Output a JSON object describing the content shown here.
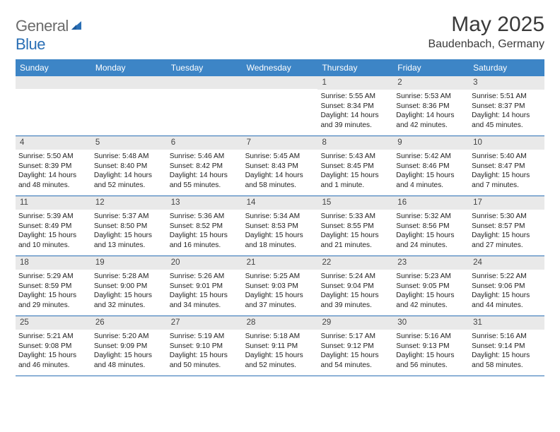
{
  "logo": {
    "part1": "General",
    "part2": "Blue"
  },
  "title": "May 2025",
  "location": "Baudenbach, Germany",
  "colors": {
    "header_bg": "#3d85c6",
    "rule": "#2a6fb5",
    "daynum_bg": "#e9e9e9",
    "logo_gray": "#6b6b6b",
    "logo_blue": "#2a6fb5"
  },
  "days_of_week": [
    "Sunday",
    "Monday",
    "Tuesday",
    "Wednesday",
    "Thursday",
    "Friday",
    "Saturday"
  ],
  "weeks": [
    [
      null,
      null,
      null,
      null,
      {
        "n": "1",
        "sunrise": "5:55 AM",
        "sunset": "8:34 PM",
        "daylight": "14 hours and 39 minutes."
      },
      {
        "n": "2",
        "sunrise": "5:53 AM",
        "sunset": "8:36 PM",
        "daylight": "14 hours and 42 minutes."
      },
      {
        "n": "3",
        "sunrise": "5:51 AM",
        "sunset": "8:37 PM",
        "daylight": "14 hours and 45 minutes."
      }
    ],
    [
      {
        "n": "4",
        "sunrise": "5:50 AM",
        "sunset": "8:39 PM",
        "daylight": "14 hours and 48 minutes."
      },
      {
        "n": "5",
        "sunrise": "5:48 AM",
        "sunset": "8:40 PM",
        "daylight": "14 hours and 52 minutes."
      },
      {
        "n": "6",
        "sunrise": "5:46 AM",
        "sunset": "8:42 PM",
        "daylight": "14 hours and 55 minutes."
      },
      {
        "n": "7",
        "sunrise": "5:45 AM",
        "sunset": "8:43 PM",
        "daylight": "14 hours and 58 minutes."
      },
      {
        "n": "8",
        "sunrise": "5:43 AM",
        "sunset": "8:45 PM",
        "daylight": "15 hours and 1 minute."
      },
      {
        "n": "9",
        "sunrise": "5:42 AM",
        "sunset": "8:46 PM",
        "daylight": "15 hours and 4 minutes."
      },
      {
        "n": "10",
        "sunrise": "5:40 AM",
        "sunset": "8:47 PM",
        "daylight": "15 hours and 7 minutes."
      }
    ],
    [
      {
        "n": "11",
        "sunrise": "5:39 AM",
        "sunset": "8:49 PM",
        "daylight": "15 hours and 10 minutes."
      },
      {
        "n": "12",
        "sunrise": "5:37 AM",
        "sunset": "8:50 PM",
        "daylight": "15 hours and 13 minutes."
      },
      {
        "n": "13",
        "sunrise": "5:36 AM",
        "sunset": "8:52 PM",
        "daylight": "15 hours and 16 minutes."
      },
      {
        "n": "14",
        "sunrise": "5:34 AM",
        "sunset": "8:53 PM",
        "daylight": "15 hours and 18 minutes."
      },
      {
        "n": "15",
        "sunrise": "5:33 AM",
        "sunset": "8:55 PM",
        "daylight": "15 hours and 21 minutes."
      },
      {
        "n": "16",
        "sunrise": "5:32 AM",
        "sunset": "8:56 PM",
        "daylight": "15 hours and 24 minutes."
      },
      {
        "n": "17",
        "sunrise": "5:30 AM",
        "sunset": "8:57 PM",
        "daylight": "15 hours and 27 minutes."
      }
    ],
    [
      {
        "n": "18",
        "sunrise": "5:29 AM",
        "sunset": "8:59 PM",
        "daylight": "15 hours and 29 minutes."
      },
      {
        "n": "19",
        "sunrise": "5:28 AM",
        "sunset": "9:00 PM",
        "daylight": "15 hours and 32 minutes."
      },
      {
        "n": "20",
        "sunrise": "5:26 AM",
        "sunset": "9:01 PM",
        "daylight": "15 hours and 34 minutes."
      },
      {
        "n": "21",
        "sunrise": "5:25 AM",
        "sunset": "9:03 PM",
        "daylight": "15 hours and 37 minutes."
      },
      {
        "n": "22",
        "sunrise": "5:24 AM",
        "sunset": "9:04 PM",
        "daylight": "15 hours and 39 minutes."
      },
      {
        "n": "23",
        "sunrise": "5:23 AM",
        "sunset": "9:05 PM",
        "daylight": "15 hours and 42 minutes."
      },
      {
        "n": "24",
        "sunrise": "5:22 AM",
        "sunset": "9:06 PM",
        "daylight": "15 hours and 44 minutes."
      }
    ],
    [
      {
        "n": "25",
        "sunrise": "5:21 AM",
        "sunset": "9:08 PM",
        "daylight": "15 hours and 46 minutes."
      },
      {
        "n": "26",
        "sunrise": "5:20 AM",
        "sunset": "9:09 PM",
        "daylight": "15 hours and 48 minutes."
      },
      {
        "n": "27",
        "sunrise": "5:19 AM",
        "sunset": "9:10 PM",
        "daylight": "15 hours and 50 minutes."
      },
      {
        "n": "28",
        "sunrise": "5:18 AM",
        "sunset": "9:11 PM",
        "daylight": "15 hours and 52 minutes."
      },
      {
        "n": "29",
        "sunrise": "5:17 AM",
        "sunset": "9:12 PM",
        "daylight": "15 hours and 54 minutes."
      },
      {
        "n": "30",
        "sunrise": "5:16 AM",
        "sunset": "9:13 PM",
        "daylight": "15 hours and 56 minutes."
      },
      {
        "n": "31",
        "sunrise": "5:16 AM",
        "sunset": "9:14 PM",
        "daylight": "15 hours and 58 minutes."
      }
    ]
  ],
  "labels": {
    "sunrise_prefix": "Sunrise: ",
    "sunset_prefix": "Sunset: ",
    "daylight_prefix": "Daylight: "
  }
}
